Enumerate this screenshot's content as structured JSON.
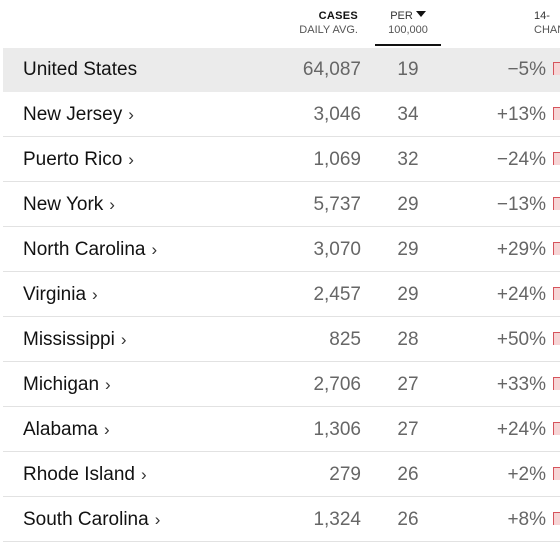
{
  "header": {
    "cases_line1": "CASES",
    "cases_line2": "DAILY AVG.",
    "per_line1": "PER",
    "per_line2": "100,000",
    "change_line1": "14-",
    "change_line2": "CHAN"
  },
  "sort": {
    "active_column": "per_100000",
    "direction": "descending",
    "indicator_icon": "caret-down-icon"
  },
  "colors": {
    "highlight_row": "#ebebeb",
    "sparkline": "#d6545c",
    "sparkline_fill": "#f7d5d6",
    "divider": "#e2e2e2"
  },
  "rows": [
    {
      "name": "United States",
      "chevron": "",
      "cases": "64,087",
      "per": "19",
      "change": "−5%"
    },
    {
      "name": "New Jersey",
      "chevron": "›",
      "cases": "3,046",
      "per": "34",
      "change": "+13%"
    },
    {
      "name": "Puerto Rico",
      "chevron": "›",
      "cases": "1,069",
      "per": "32",
      "change": "−24%"
    },
    {
      "name": "New York",
      "chevron": "›",
      "cases": "5,737",
      "per": "29",
      "change": "−13%"
    },
    {
      "name": "North Carolina",
      "chevron": "›",
      "cases": "3,070",
      "per": "29",
      "change": "+29%"
    },
    {
      "name": "Virginia",
      "chevron": "›",
      "cases": "2,457",
      "per": "29",
      "change": "+24%"
    },
    {
      "name": "Mississippi",
      "chevron": "›",
      "cases": "825",
      "per": "28",
      "change": "+50%"
    },
    {
      "name": "Michigan",
      "chevron": "›",
      "cases": "2,706",
      "per": "27",
      "change": "+33%"
    },
    {
      "name": "Alabama",
      "chevron": "›",
      "cases": "1,306",
      "per": "27",
      "change": "+24%"
    },
    {
      "name": "Rhode Island",
      "chevron": "›",
      "cases": "279",
      "per": "26",
      "change": "+2%"
    },
    {
      "name": "South Carolina",
      "chevron": "›",
      "cases": "1,324",
      "per": "26",
      "change": "+8%"
    }
  ]
}
